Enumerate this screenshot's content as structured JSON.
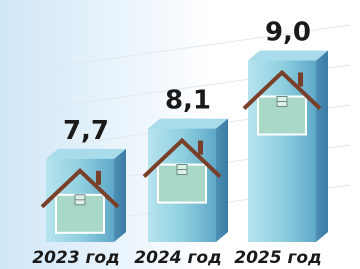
{
  "chart_data": {
    "type": "bar3d",
    "categories": [
      "2023 год",
      "2024 год",
      "2025 год"
    ],
    "values": [
      7.7,
      8.1,
      9.0
    ],
    "value_labels": [
      "7,7",
      "8,1",
      "9,0"
    ],
    "ylim": [
      6.6,
      9.8
    ],
    "color": "#8fd0e0"
  }
}
